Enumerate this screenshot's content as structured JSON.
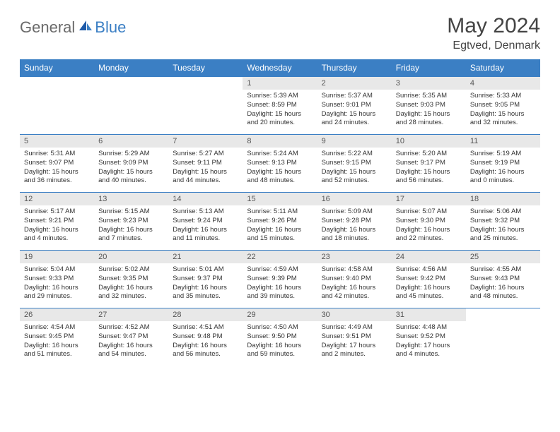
{
  "brand": {
    "word1": "General",
    "word2": "Blue"
  },
  "title": "May 2024",
  "location": "Egtved, Denmark",
  "colors": {
    "header_bg": "#3b7fc4",
    "header_text": "#ffffff",
    "daynum_bg": "#e8e8e8",
    "border": "#3b7fc4",
    "logo_gray": "#6a6a6a",
    "logo_blue": "#3b7fc4"
  },
  "typography": {
    "title_fontsize": 30,
    "location_fontsize": 16,
    "dayheader_fontsize": 12,
    "daynum_fontsize": 11,
    "body_fontsize": 9.5
  },
  "day_headers": [
    "Sunday",
    "Monday",
    "Tuesday",
    "Wednesday",
    "Thursday",
    "Friday",
    "Saturday"
  ],
  "weeks": [
    [
      {
        "n": "",
        "sr": "",
        "ss": "",
        "dl": ""
      },
      {
        "n": "",
        "sr": "",
        "ss": "",
        "dl": ""
      },
      {
        "n": "",
        "sr": "",
        "ss": "",
        "dl": ""
      },
      {
        "n": "1",
        "sr": "5:39 AM",
        "ss": "8:59 PM",
        "dl": "15 hours and 20 minutes."
      },
      {
        "n": "2",
        "sr": "5:37 AM",
        "ss": "9:01 PM",
        "dl": "15 hours and 24 minutes."
      },
      {
        "n": "3",
        "sr": "5:35 AM",
        "ss": "9:03 PM",
        "dl": "15 hours and 28 minutes."
      },
      {
        "n": "4",
        "sr": "5:33 AM",
        "ss": "9:05 PM",
        "dl": "15 hours and 32 minutes."
      }
    ],
    [
      {
        "n": "5",
        "sr": "5:31 AM",
        "ss": "9:07 PM",
        "dl": "15 hours and 36 minutes."
      },
      {
        "n": "6",
        "sr": "5:29 AM",
        "ss": "9:09 PM",
        "dl": "15 hours and 40 minutes."
      },
      {
        "n": "7",
        "sr": "5:27 AM",
        "ss": "9:11 PM",
        "dl": "15 hours and 44 minutes."
      },
      {
        "n": "8",
        "sr": "5:24 AM",
        "ss": "9:13 PM",
        "dl": "15 hours and 48 minutes."
      },
      {
        "n": "9",
        "sr": "5:22 AM",
        "ss": "9:15 PM",
        "dl": "15 hours and 52 minutes."
      },
      {
        "n": "10",
        "sr": "5:20 AM",
        "ss": "9:17 PM",
        "dl": "15 hours and 56 minutes."
      },
      {
        "n": "11",
        "sr": "5:19 AM",
        "ss": "9:19 PM",
        "dl": "16 hours and 0 minutes."
      }
    ],
    [
      {
        "n": "12",
        "sr": "5:17 AM",
        "ss": "9:21 PM",
        "dl": "16 hours and 4 minutes."
      },
      {
        "n": "13",
        "sr": "5:15 AM",
        "ss": "9:23 PM",
        "dl": "16 hours and 7 minutes."
      },
      {
        "n": "14",
        "sr": "5:13 AM",
        "ss": "9:24 PM",
        "dl": "16 hours and 11 minutes."
      },
      {
        "n": "15",
        "sr": "5:11 AM",
        "ss": "9:26 PM",
        "dl": "16 hours and 15 minutes."
      },
      {
        "n": "16",
        "sr": "5:09 AM",
        "ss": "9:28 PM",
        "dl": "16 hours and 18 minutes."
      },
      {
        "n": "17",
        "sr": "5:07 AM",
        "ss": "9:30 PM",
        "dl": "16 hours and 22 minutes."
      },
      {
        "n": "18",
        "sr": "5:06 AM",
        "ss": "9:32 PM",
        "dl": "16 hours and 25 minutes."
      }
    ],
    [
      {
        "n": "19",
        "sr": "5:04 AM",
        "ss": "9:33 PM",
        "dl": "16 hours and 29 minutes."
      },
      {
        "n": "20",
        "sr": "5:02 AM",
        "ss": "9:35 PM",
        "dl": "16 hours and 32 minutes."
      },
      {
        "n": "21",
        "sr": "5:01 AM",
        "ss": "9:37 PM",
        "dl": "16 hours and 35 minutes."
      },
      {
        "n": "22",
        "sr": "4:59 AM",
        "ss": "9:39 PM",
        "dl": "16 hours and 39 minutes."
      },
      {
        "n": "23",
        "sr": "4:58 AM",
        "ss": "9:40 PM",
        "dl": "16 hours and 42 minutes."
      },
      {
        "n": "24",
        "sr": "4:56 AM",
        "ss": "9:42 PM",
        "dl": "16 hours and 45 minutes."
      },
      {
        "n": "25",
        "sr": "4:55 AM",
        "ss": "9:43 PM",
        "dl": "16 hours and 48 minutes."
      }
    ],
    [
      {
        "n": "26",
        "sr": "4:54 AM",
        "ss": "9:45 PM",
        "dl": "16 hours and 51 minutes."
      },
      {
        "n": "27",
        "sr": "4:52 AM",
        "ss": "9:47 PM",
        "dl": "16 hours and 54 minutes."
      },
      {
        "n": "28",
        "sr": "4:51 AM",
        "ss": "9:48 PM",
        "dl": "16 hours and 56 minutes."
      },
      {
        "n": "29",
        "sr": "4:50 AM",
        "ss": "9:50 PM",
        "dl": "16 hours and 59 minutes."
      },
      {
        "n": "30",
        "sr": "4:49 AM",
        "ss": "9:51 PM",
        "dl": "17 hours and 2 minutes."
      },
      {
        "n": "31",
        "sr": "4:48 AM",
        "ss": "9:52 PM",
        "dl": "17 hours and 4 minutes."
      },
      {
        "n": "",
        "sr": "",
        "ss": "",
        "dl": ""
      }
    ]
  ],
  "labels": {
    "sunrise": "Sunrise:",
    "sunset": "Sunset:",
    "daylight": "Daylight:"
  }
}
